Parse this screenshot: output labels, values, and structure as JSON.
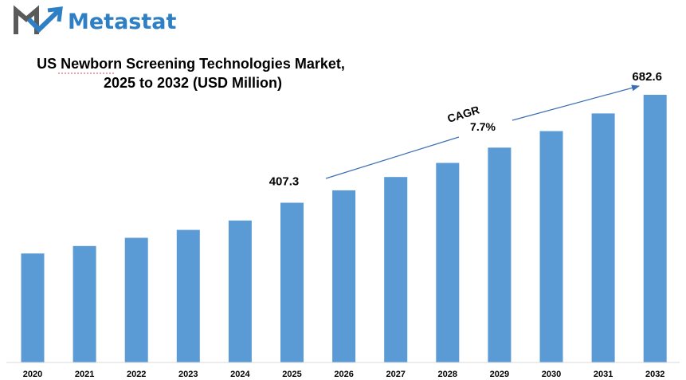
{
  "brand": {
    "name": "Metastat",
    "text_color": "#2f7fc4",
    "logo_colors": [
      "#5a5a5a",
      "#2f7fc4"
    ]
  },
  "chart_data": {
    "type": "bar",
    "title_lines": [
      "US Newborn Screening Technologies Market,",
      "2025 to 2032 (USD Million)"
    ],
    "categories": [
      "2020",
      "2021",
      "2022",
      "2023",
      "2024",
      "2025",
      "2026",
      "2027",
      "2028",
      "2029",
      "2030",
      "2031",
      "2032"
    ],
    "values": [
      278,
      297,
      318,
      338,
      362,
      407.3,
      439,
      473,
      509,
      548,
      590,
      635,
      682.6
    ],
    "data_labels": [
      {
        "category": "2025",
        "text": "407.3"
      },
      {
        "category": "2032",
        "text": "682.6"
      }
    ],
    "annotation": {
      "label": "CAGR",
      "value": "7.7%",
      "from_category": "2025",
      "to_category": "2032"
    },
    "xlabel": "",
    "ylabel": "",
    "ylim": [
      0,
      700
    ],
    "bar_color": "#5b9bd5",
    "axis_color": "#d9d9d9",
    "arrow_color": "#3a6fb3",
    "grid": false,
    "legend": "none"
  }
}
